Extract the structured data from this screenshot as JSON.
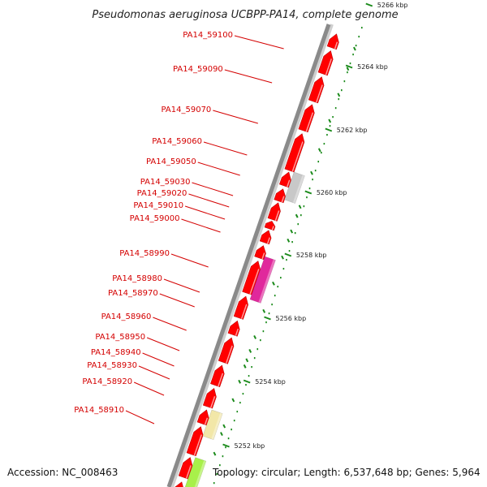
{
  "title": "Pseudomonas aeruginosa UCBPP-PA14, complete genome",
  "footer": {
    "accession": "Accession: NC_008463",
    "topology": "Topology: circular; Length: 6,537,648 bp; Genes: 5,964"
  },
  "colors": {
    "gene": "#ff0000",
    "backbone": "#8a8a8a",
    "label": "#d40000",
    "tick": "#1a8a1a"
  },
  "genes": [
    {
      "label": "PA14_59100"
    },
    {
      "label": "PA14_59090"
    },
    {
      "label": "PA14_59070"
    },
    {
      "label": "PA14_59060"
    },
    {
      "label": "PA14_59050"
    },
    {
      "label": "PA14_59030"
    },
    {
      "label": "PA14_59020"
    },
    {
      "label": "PA14_59010"
    },
    {
      "label": "PA14_59000"
    },
    {
      "label": "PA14_58990"
    },
    {
      "label": "PA14_58980"
    },
    {
      "label": "PA14_58970"
    },
    {
      "label": "PA14_58960"
    },
    {
      "label": "PA14_58950"
    },
    {
      "label": "PA14_58940"
    },
    {
      "label": "PA14_58930"
    },
    {
      "label": "PA14_58920"
    },
    {
      "label": "PA14_58910"
    }
  ],
  "coordinate_ticks": [
    {
      "label": "5266 kbp"
    },
    {
      "label": "5264 kbp"
    },
    {
      "label": "5262 kbp"
    },
    {
      "label": "5260 kbp"
    },
    {
      "label": "5258 kbp"
    },
    {
      "label": "5256 kbp"
    },
    {
      "label": "5254 kbp"
    },
    {
      "label": "5252 kbp"
    }
  ]
}
